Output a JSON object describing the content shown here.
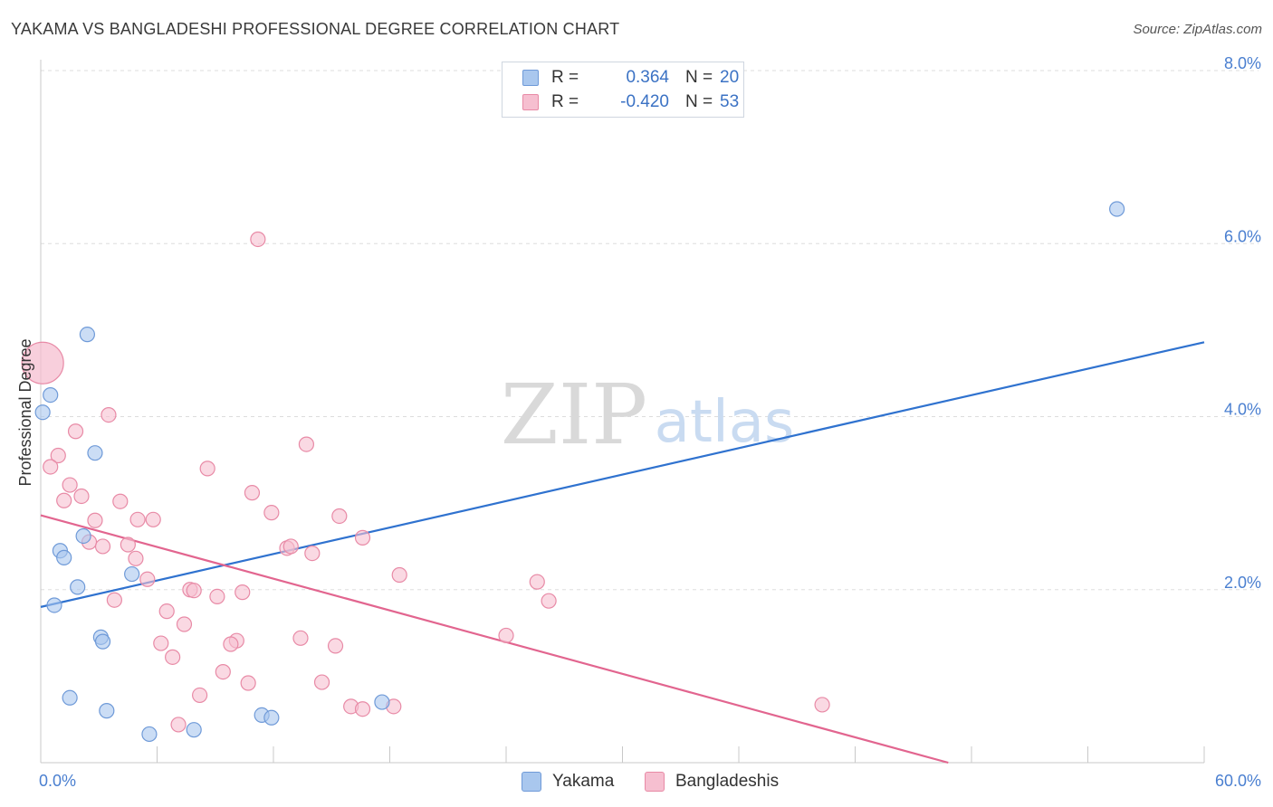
{
  "title": "YAKAMA VS BANGLADESHI PROFESSIONAL DEGREE CORRELATION CHART",
  "source": "Source: ZipAtlas.com",
  "watermark": {
    "zip": "ZIP",
    "atlas": "atlas"
  },
  "colors": {
    "yakama_fill": "#a9c7ee",
    "yakama_stroke": "#6f9ad8",
    "yakama_line": "#2f72cf",
    "bangla_fill": "#f6bfd0",
    "bangla_stroke": "#e88aa6",
    "bangla_line": "#e2658f",
    "tick_text": "#4a7fd0",
    "grid": "#dddddd"
  },
  "legend": {
    "rows": [
      {
        "series": "Yakama",
        "r_label": "R =",
        "r_value": "0.364",
        "n_label": "N =",
        "n_value": "20"
      },
      {
        "series": "Bangladeshis",
        "r_label": "R =",
        "r_value": "-0.420",
        "n_label": "N =",
        "n_value": "53"
      }
    ]
  },
  "bottom_legend": [
    "Yakama",
    "Bangladeshis"
  ],
  "chart_data": {
    "type": "scatter",
    "title": "YAKAMA VS BANGLADESHI PROFESSIONAL DEGREE CORRELATION CHART",
    "xlabel": "",
    "ylabel": "Professional Degree",
    "xlim": [
      0,
      60
    ],
    "ylim": [
      0,
      8
    ],
    "x_tick_labels": [
      "0.0%",
      "60.0%"
    ],
    "y_ticks": [
      2,
      4,
      6,
      8
    ],
    "y_tick_labels": [
      "2.0%",
      "4.0%",
      "6.0%",
      "8.0%"
    ],
    "grid": true,
    "legend_position": "top-center",
    "series": [
      {
        "name": "Yakama",
        "r": 0.364,
        "n": 20,
        "trend": {
          "x": [
            0,
            60
          ],
          "y": [
            1.8,
            4.86
          ]
        },
        "points": [
          {
            "x": 0.1,
            "y": 4.05
          },
          {
            "x": 0.5,
            "y": 4.25
          },
          {
            "x": 2.4,
            "y": 4.95
          },
          {
            "x": 2.8,
            "y": 3.58
          },
          {
            "x": 2.2,
            "y": 2.62
          },
          {
            "x": 1.0,
            "y": 2.45
          },
          {
            "x": 1.2,
            "y": 2.37
          },
          {
            "x": 1.9,
            "y": 2.03
          },
          {
            "x": 0.7,
            "y": 1.82
          },
          {
            "x": 4.7,
            "y": 2.18
          },
          {
            "x": 3.1,
            "y": 1.45
          },
          {
            "x": 3.2,
            "y": 1.4
          },
          {
            "x": 1.5,
            "y": 0.75
          },
          {
            "x": 3.4,
            "y": 0.6
          },
          {
            "x": 5.6,
            "y": 0.33
          },
          {
            "x": 7.9,
            "y": 0.38
          },
          {
            "x": 11.4,
            "y": 0.55
          },
          {
            "x": 11.9,
            "y": 0.52
          },
          {
            "x": 17.6,
            "y": 0.7
          },
          {
            "x": 55.5,
            "y": 6.4
          }
        ]
      },
      {
        "name": "Bangladeshis",
        "r": -0.42,
        "n": 53,
        "trend": {
          "x": [
            0,
            46.8
          ],
          "y": [
            2.86,
            0.0
          ]
        },
        "points": [
          {
            "x": 0.1,
            "y": 4.62,
            "large": true
          },
          {
            "x": 11.2,
            "y": 6.05
          },
          {
            "x": 3.5,
            "y": 4.02
          },
          {
            "x": 1.8,
            "y": 3.83
          },
          {
            "x": 13.7,
            "y": 3.68
          },
          {
            "x": 0.9,
            "y": 3.55
          },
          {
            "x": 0.5,
            "y": 3.42
          },
          {
            "x": 8.6,
            "y": 3.4
          },
          {
            "x": 1.5,
            "y": 3.21
          },
          {
            "x": 10.9,
            "y": 3.12
          },
          {
            "x": 2.1,
            "y": 3.08
          },
          {
            "x": 1.2,
            "y": 3.03
          },
          {
            "x": 4.1,
            "y": 3.02
          },
          {
            "x": 11.9,
            "y": 2.89
          },
          {
            "x": 15.4,
            "y": 2.85
          },
          {
            "x": 2.8,
            "y": 2.8
          },
          {
            "x": 5.0,
            "y": 2.81
          },
          {
            "x": 5.8,
            "y": 2.81
          },
          {
            "x": 16.6,
            "y": 2.6
          },
          {
            "x": 2.5,
            "y": 2.55
          },
          {
            "x": 3.2,
            "y": 2.5
          },
          {
            "x": 4.5,
            "y": 2.52
          },
          {
            "x": 12.7,
            "y": 2.48
          },
          {
            "x": 12.9,
            "y": 2.5
          },
          {
            "x": 14.0,
            "y": 2.42
          },
          {
            "x": 4.9,
            "y": 2.36
          },
          {
            "x": 5.5,
            "y": 2.12
          },
          {
            "x": 18.5,
            "y": 2.17
          },
          {
            "x": 25.6,
            "y": 2.09
          },
          {
            "x": 7.7,
            "y": 2.0
          },
          {
            "x": 7.9,
            "y": 1.99
          },
          {
            "x": 10.4,
            "y": 1.97
          },
          {
            "x": 9.1,
            "y": 1.92
          },
          {
            "x": 3.8,
            "y": 1.88
          },
          {
            "x": 26.2,
            "y": 1.87
          },
          {
            "x": 6.5,
            "y": 1.75
          },
          {
            "x": 7.4,
            "y": 1.6
          },
          {
            "x": 24.0,
            "y": 1.47
          },
          {
            "x": 13.4,
            "y": 1.44
          },
          {
            "x": 10.1,
            "y": 1.41
          },
          {
            "x": 9.8,
            "y": 1.37
          },
          {
            "x": 6.2,
            "y": 1.38
          },
          {
            "x": 15.2,
            "y": 1.35
          },
          {
            "x": 6.8,
            "y": 1.22
          },
          {
            "x": 9.4,
            "y": 1.05
          },
          {
            "x": 10.7,
            "y": 0.92
          },
          {
            "x": 14.5,
            "y": 0.93
          },
          {
            "x": 8.2,
            "y": 0.78
          },
          {
            "x": 16.0,
            "y": 0.65
          },
          {
            "x": 16.6,
            "y": 0.62
          },
          {
            "x": 18.2,
            "y": 0.65
          },
          {
            "x": 40.3,
            "y": 0.67
          },
          {
            "x": 7.1,
            "y": 0.44
          }
        ]
      }
    ]
  }
}
